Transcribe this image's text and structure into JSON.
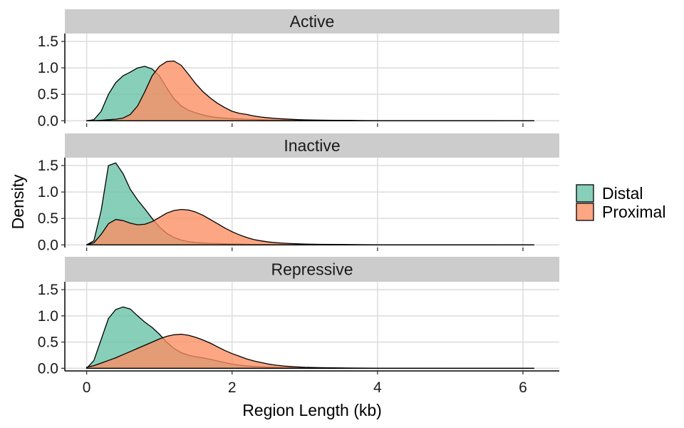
{
  "chart_data": {
    "type": "area",
    "subtype": "faceted density",
    "xlabel": "Region Length (kb)",
    "ylabel": "Density",
    "xlim": [
      -0.3,
      6.5
    ],
    "ylim": [
      -0.05,
      1.65
    ],
    "xticks": [
      0,
      2,
      4,
      6
    ],
    "yticks": [
      0.0,
      0.5,
      1.0,
      1.5
    ],
    "ytick_labels": [
      "0.0",
      "0.5",
      "1.0",
      "1.5"
    ],
    "grid": true,
    "legend_position": "right",
    "legend": [
      {
        "name": "Distal",
        "color": "#66C2A5"
      },
      {
        "name": "Proximal",
        "color": "#FC8D62"
      }
    ],
    "x": [
      0.0,
      0.1,
      0.2,
      0.3,
      0.4,
      0.5,
      0.6,
      0.7,
      0.8,
      0.9,
      1.0,
      1.1,
      1.2,
      1.3,
      1.4,
      1.5,
      1.6,
      1.7,
      1.8,
      1.9,
      2.0,
      2.1,
      2.2,
      2.3,
      2.4,
      2.5,
      2.6,
      2.7,
      2.8,
      2.9,
      3.0,
      3.2,
      3.4,
      3.6,
      3.8,
      4.0,
      4.5,
      5.0,
      5.5,
      6.0,
      6.15
    ],
    "facets": [
      {
        "label": "Active",
        "series": [
          {
            "name": "Distal",
            "values": [
              0,
              0.02,
              0.18,
              0.5,
              0.72,
              0.85,
              0.92,
              1.0,
              1.03,
              0.98,
              0.85,
              0.62,
              0.42,
              0.28,
              0.2,
              0.15,
              0.11,
              0.08,
              0.06,
              0.05,
              0.04,
              0.035,
              0.03,
              0.025,
              0.02,
              0.018,
              0.015,
              0.012,
              0.01,
              0.009,
              0.008,
              0.006,
              0.005,
              0.004,
              0.003,
              0.002,
              0.001,
              0.001,
              0,
              0,
              0
            ]
          },
          {
            "name": "Proximal",
            "values": [
              0,
              0,
              0.01,
              0.02,
              0.03,
              0.05,
              0.12,
              0.28,
              0.55,
              0.85,
              1.03,
              1.12,
              1.13,
              1.05,
              0.88,
              0.7,
              0.55,
              0.43,
              0.33,
              0.25,
              0.18,
              0.14,
              0.12,
              0.09,
              0.07,
              0.055,
              0.045,
              0.035,
              0.028,
              0.022,
              0.018,
              0.012,
              0.009,
              0.006,
              0.004,
              0.003,
              0.002,
              0.001,
              0.001,
              0,
              0
            ]
          }
        ]
      },
      {
        "label": "Inactive",
        "series": [
          {
            "name": "Distal",
            "values": [
              0,
              0.08,
              0.65,
              1.5,
              1.55,
              1.35,
              1.05,
              0.85,
              0.68,
              0.5,
              0.34,
              0.22,
              0.14,
              0.09,
              0.06,
              0.045,
              0.035,
              0.03,
              0.025,
              0.02,
              0.018,
              0.015,
              0.012,
              0.01,
              0.009,
              0.008,
              0.007,
              0.006,
              0.005,
              0.004,
              0.004,
              0.003,
              0.002,
              0.002,
              0.001,
              0.001,
              0.001,
              0,
              0,
              0,
              0
            ]
          },
          {
            "name": "Proximal",
            "values": [
              0,
              0.04,
              0.2,
              0.4,
              0.48,
              0.46,
              0.41,
              0.38,
              0.39,
              0.44,
              0.52,
              0.6,
              0.65,
              0.67,
              0.66,
              0.62,
              0.56,
              0.48,
              0.4,
              0.32,
              0.25,
              0.19,
              0.14,
              0.1,
              0.075,
              0.055,
              0.042,
              0.032,
              0.025,
              0.02,
              0.016,
              0.011,
              0.008,
              0.006,
              0.004,
              0.003,
              0.002,
              0.001,
              0.001,
              0,
              0
            ]
          }
        ]
      },
      {
        "label": "Repressive",
        "series": [
          {
            "name": "Distal",
            "values": [
              0,
              0.15,
              0.55,
              0.95,
              1.12,
              1.17,
              1.13,
              1.0,
              0.88,
              0.78,
              0.65,
              0.5,
              0.38,
              0.3,
              0.25,
              0.22,
              0.2,
              0.17,
              0.14,
              0.11,
              0.08,
              0.06,
              0.045,
              0.035,
              0.028,
              0.022,
              0.018,
              0.014,
              0.011,
              0.009,
              0.007,
              0.005,
              0.004,
              0.003,
              0.002,
              0.001,
              0.001,
              0,
              0,
              0,
              0
            ]
          },
          {
            "name": "Proximal",
            "values": [
              0.02,
              0.05,
              0.1,
              0.15,
              0.2,
              0.26,
              0.32,
              0.38,
              0.44,
              0.5,
              0.56,
              0.61,
              0.64,
              0.65,
              0.63,
              0.59,
              0.54,
              0.48,
              0.41,
              0.34,
              0.28,
              0.23,
              0.18,
              0.14,
              0.11,
              0.08,
              0.06,
              0.045,
              0.034,
              0.026,
              0.02,
              0.013,
              0.009,
              0.006,
              0.004,
              0.003,
              0.002,
              0.001,
              0.001,
              0,
              0
            ]
          }
        ]
      }
    ]
  }
}
